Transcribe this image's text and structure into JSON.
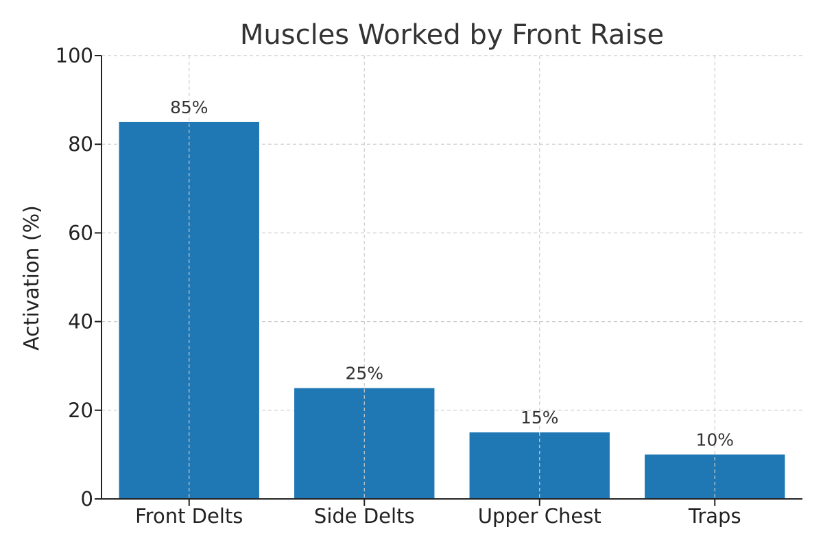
{
  "chart_data": {
    "type": "bar",
    "title": "Muscles Worked by Front Raise",
    "xlabel": "",
    "ylabel": "Activation (%)",
    "categories": [
      "Front Delts",
      "Side Delts",
      "Upper Chest",
      "Traps"
    ],
    "values": [
      85,
      25,
      15,
      10
    ],
    "data_labels": [
      "85%",
      "25%",
      "15%",
      "10%"
    ],
    "ylim": [
      0,
      100
    ],
    "yticks": [
      0,
      20,
      40,
      60,
      80,
      100
    ],
    "grid": true,
    "bar_color": "#1f77b4"
  }
}
